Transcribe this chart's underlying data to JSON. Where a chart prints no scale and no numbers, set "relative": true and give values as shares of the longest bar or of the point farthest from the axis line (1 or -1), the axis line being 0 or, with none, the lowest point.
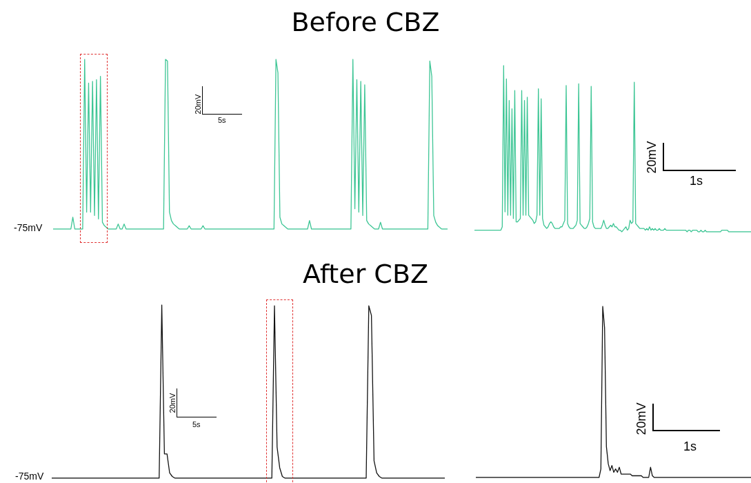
{
  "chart_data": [
    {
      "type": "line",
      "title": "Before CBZ",
      "relative": true,
      "tick_labels": false,
      "annotations": [
        "-75mV",
        "20mV",
        "5s"
      ],
      "categories": [
        null,
        null,
        null,
        null,
        null,
        null,
        null,
        null,
        null,
        null,
        null,
        null,
        null,
        null,
        null,
        null,
        null,
        null,
        null,
        null,
        null,
        null,
        null,
        null,
        null,
        null,
        null,
        null,
        null,
        null,
        null,
        null,
        null,
        null,
        null,
        null,
        null,
        null,
        null,
        null,
        null,
        null,
        null,
        null,
        null,
        null,
        null,
        null,
        null,
        null,
        null,
        null,
        null,
        null,
        null,
        null,
        null,
        null,
        null,
        null,
        null,
        null,
        null,
        null,
        null,
        null,
        null,
        null,
        null,
        null,
        null,
        null,
        null,
        null,
        null,
        null,
        null,
        null,
        null,
        null,
        null,
        null,
        null,
        null,
        null,
        null,
        null,
        null,
        null,
        null,
        null,
        null,
        null,
        null,
        null,
        null,
        null,
        null,
        null,
        null,
        null,
        null,
        null,
        null,
        null,
        null,
        null,
        null,
        null,
        null,
        null,
        null,
        null,
        null,
        null,
        null,
        null,
        null,
        null,
        null,
        null,
        null,
        null,
        null,
        null,
        null,
        null,
        null,
        null,
        null,
        null,
        null,
        null,
        null,
        null,
        null,
        null,
        null,
        null,
        null,
        null,
        null,
        null,
        null,
        null,
        null,
        null,
        null,
        null,
        null,
        null,
        null,
        null,
        null,
        null,
        null,
        null,
        null,
        null,
        null,
        null,
        null,
        null,
        null,
        null,
        null,
        null,
        null,
        null,
        null,
        null,
        null,
        null,
        null,
        null,
        null,
        null,
        null,
        null,
        null,
        null,
        null,
        null,
        null,
        null,
        null,
        null,
        null,
        null,
        null,
        null,
        null,
        null,
        null,
        null,
        null,
        null,
        null,
        null,
        null,
        null
      ],
      "series": [
        {
          "color": "#3cc594",
          "values": [
            0,
            0,
            0,
            0,
            0,
            0,
            0,
            0,
            0,
            0,
            0.07,
            0,
            0,
            0,
            0,
            0,
            1.0,
            0.1,
            0.86,
            0.1,
            0.87,
            0.08,
            0.88,
            0.06,
            0.9,
            0.04,
            0.02,
            0.01,
            0,
            0,
            0,
            0,
            0,
            0.03,
            0,
            0,
            0.03,
            0,
            0,
            0,
            0,
            0,
            0,
            0,
            0,
            0,
            0,
            0,
            0,
            0,
            0,
            0,
            0,
            0,
            0,
            0,
            0,
            1.0,
            0.99,
            0.1,
            0.05,
            0.03,
            0.02,
            0.01,
            0,
            0,
            0,
            0,
            0,
            0.02,
            0,
            0,
            0,
            0,
            0,
            0,
            0.02,
            0,
            0,
            0,
            0,
            0,
            0,
            0,
            0,
            0,
            0,
            0,
            0,
            0,
            0,
            0,
            0,
            0,
            0,
            0,
            0,
            0,
            0,
            0,
            0,
            0,
            0,
            0,
            0,
            0,
            0,
            0,
            0,
            0,
            0,
            0,
            0,
            1.0,
            0.92,
            0.07,
            0.03,
            0.02,
            0.01,
            0,
            0,
            0,
            0,
            0,
            0,
            0,
            0,
            0,
            0,
            0,
            0.05,
            0,
            0,
            0,
            0,
            0,
            0,
            0,
            0,
            0,
            0,
            0,
            0,
            0,
            0,
            0,
            0,
            0,
            0,
            0,
            0,
            0,
            1.0,
            0.12,
            0.88,
            0.1,
            0.87,
            0.08,
            0.85,
            0.05,
            0.03,
            0.02,
            0.01,
            0,
            0,
            0,
            0.04,
            0,
            0,
            0,
            0,
            0,
            0,
            0,
            0,
            0,
            0,
            0,
            0,
            0,
            0,
            0,
            0,
            0,
            0,
            0,
            0,
            0,
            0,
            0,
            0,
            0.99,
            0.9,
            0.08,
            0.04,
            0.02,
            0.01,
            0,
            0,
            0,
            0
          ]
        }
      ]
    },
    {
      "type": "line",
      "relative": true,
      "tick_labels": false,
      "annotations": [
        "20mV",
        "1s"
      ],
      "categories": [
        null,
        null,
        null,
        null,
        null,
        null,
        null,
        null,
        null,
        null,
        null,
        null,
        null,
        null,
        null,
        null,
        null,
        null,
        null,
        null,
        null,
        null,
        null,
        null,
        null,
        null,
        null,
        null,
        null,
        null,
        null,
        null,
        null,
        null,
        null,
        null,
        null,
        null,
        null,
        null,
        null,
        null,
        null,
        null,
        null,
        null,
        null,
        null,
        null,
        null,
        null,
        null,
        null,
        null,
        null,
        null,
        null,
        null,
        null,
        null,
        null,
        null,
        null,
        null,
        null,
        null,
        null,
        null,
        null,
        null,
        null,
        null,
        null,
        null,
        null,
        null,
        null,
        null,
        null,
        null,
        null,
        null,
        null,
        null,
        null,
        null,
        null,
        null,
        null,
        null,
        null,
        null,
        null,
        null,
        null,
        null,
        null,
        null,
        null,
        null,
        null,
        null,
        null,
        null,
        null,
        null,
        null,
        null,
        null,
        null,
        null,
        null,
        null,
        null,
        null,
        null,
        null,
        null,
        null,
        null,
        null,
        null,
        null,
        null,
        null,
        null,
        null,
        null,
        null,
        null,
        null,
        null,
        null,
        null,
        null,
        null,
        null,
        null,
        null,
        null,
        null,
        null,
        null,
        null,
        null,
        null,
        null,
        null,
        null,
        null,
        null,
        null,
        null,
        null,
        null,
        null,
        null,
        null,
        null,
        null,
        null,
        null,
        null,
        null,
        null,
        null,
        null,
        null,
        null,
        null,
        null,
        null,
        null,
        null,
        null,
        null,
        null,
        null,
        null,
        null,
        null,
        null,
        null,
        null,
        null,
        null,
        null,
        null,
        null,
        null,
        null,
        null,
        null,
        null,
        null,
        null,
        null,
        null,
        null,
        null
      ],
      "series": [
        {
          "color": "#3cc594",
          "values": [
            0.01,
            0.01,
            0.01,
            0.01,
            0.01,
            0.01,
            0.01,
            0.01,
            0.01,
            0.01,
            0.01,
            0.01,
            0.01,
            0.01,
            0.01,
            0.01,
            0.01,
            0.01,
            0.01,
            0.01,
            0.03,
            1.0,
            0.12,
            0.92,
            0.1,
            0.79,
            0.1,
            0.74,
            0.08,
            0.85,
            0.06,
            0.06,
            0.07,
            0.08,
            0.85,
            0.1,
            0.79,
            0.1,
            0.81,
            0.1,
            0.09,
            0.08,
            0.07,
            0.05,
            0.06,
            0.1,
            0.86,
            0.1,
            0.8,
            0.08,
            0.04,
            0.03,
            0.02,
            0.03,
            0.05,
            0.06,
            0.05,
            0.03,
            0.02,
            0.02,
            0.02,
            0.02,
            0.03,
            0.03,
            0.05,
            0.07,
            0.88,
            0.05,
            0.03,
            0.02,
            0.02,
            0.02,
            0.03,
            0.04,
            0.07,
            0.89,
            0.05,
            0.04,
            0.03,
            0.02,
            0.02,
            0.03,
            0.05,
            0.08,
            0.875,
            0.06,
            0.03,
            0.02,
            0.02,
            0.02,
            0.02,
            0.02,
            0.04,
            0.07,
            0.04,
            0.02,
            0.02,
            0.03,
            0.04,
            0.03,
            0.05,
            0.03,
            0.03,
            0.02,
            0.01,
            0.01,
            0,
            0.01,
            0.02,
            0.03,
            0.01,
            0.02,
            0.07,
            0.05,
            0.06,
            0.9,
            0.05,
            0.04,
            0.03,
            0.02,
            0.02,
            0.02,
            0.02,
            0.01,
            0.02,
            0.01,
            0.03,
            0.01,
            0.02,
            0.01,
            0.02,
            0.01,
            0.01,
            0.02,
            0.01,
            0.01,
            0.01,
            0.02,
            0.01,
            0.01,
            0.01,
            0.01,
            0.01,
            0.01,
            0.01,
            0.01,
            0.01,
            0.01,
            0.01,
            0.01,
            0.01,
            0.01,
            0.01,
            0,
            0.01,
            0.01,
            0,
            0.01,
            0.01,
            0.01,
            0.01,
            0,
            0,
            0.01,
            0,
            0,
            0.01,
            0,
            0,
            0,
            0,
            0,
            0,
            0,
            0,
            0,
            0,
            0,
            0.01,
            0.01,
            0.01,
            0.01,
            0.01,
            0,
            0,
            0,
            0,
            0,
            0,
            0,
            0,
            0,
            0,
            0,
            0,
            0,
            0,
            0,
            0,
            0
          ]
        }
      ]
    },
    {
      "type": "line",
      "title": "After CBZ",
      "relative": true,
      "tick_labels": false,
      "annotations": [
        "-75mV",
        "20mV",
        "5s"
      ],
      "categories": [
        null,
        null,
        null,
        null,
        null,
        null,
        null,
        null,
        null,
        null,
        null,
        null,
        null,
        null,
        null,
        null,
        null,
        null,
        null,
        null,
        null,
        null,
        null,
        null,
        null,
        null,
        null,
        null,
        null,
        null,
        null,
        null,
        null,
        null,
        null,
        null,
        null,
        null,
        null,
        null,
        null,
        null,
        null,
        null,
        null,
        null,
        null,
        null,
        null,
        null,
        null,
        null,
        null,
        null,
        null,
        null,
        null,
        null,
        null,
        null,
        null,
        null,
        null,
        null,
        null,
        null,
        null,
        null,
        null,
        null,
        null,
        null,
        null,
        null,
        null,
        null,
        null,
        null,
        null,
        null,
        null,
        null,
        null,
        null,
        null,
        null,
        null,
        null,
        null,
        null,
        null,
        null,
        null,
        null,
        null,
        null,
        null,
        null,
        null,
        null,
        null,
        null,
        null,
        null,
        null,
        null,
        null,
        null,
        null,
        null,
        null,
        null,
        null,
        null,
        null,
        null,
        null,
        null,
        null,
        null,
        null,
        null,
        null,
        null,
        null,
        null,
        null,
        null,
        null,
        null,
        null,
        null,
        null,
        null,
        null,
        null,
        null,
        null,
        null,
        null,
        null,
        null,
        null,
        null,
        null,
        null,
        null,
        null,
        null,
        null,
        null
      ],
      "series": [
        {
          "color": "#111111",
          "values": [
            0,
            0,
            0,
            0,
            0,
            0,
            0,
            0,
            0,
            0,
            0,
            0,
            0,
            0,
            0,
            0,
            0,
            0,
            0,
            0,
            0,
            0,
            0,
            0,
            0,
            0,
            0,
            0,
            0,
            0,
            0,
            0,
            0,
            0,
            0,
            0,
            0,
            0,
            0,
            0,
            0,
            0,
            1.0,
            0.14,
            0.14,
            0.03,
            0.01,
            0,
            0,
            0,
            0,
            0,
            0,
            0,
            0,
            0,
            0,
            0,
            0,
            0,
            0,
            0,
            0,
            0,
            0,
            0,
            0,
            0,
            0,
            0,
            0,
            0,
            0,
            0,
            0,
            0,
            0,
            0,
            0,
            0,
            0,
            0,
            0,
            0,
            0,
            0.995,
            0.18,
            0.06,
            0.01,
            0,
            0,
            0,
            0,
            0,
            0,
            0,
            0,
            0,
            0,
            0,
            0,
            0,
            0,
            0,
            0,
            0,
            0,
            0,
            0,
            0,
            0,
            0,
            0,
            0,
            0,
            0,
            0,
            0,
            0,
            0,
            0,
            0.995,
            0.94,
            0.1,
            0.03,
            0.01,
            0,
            0,
            0,
            0,
            0,
            0,
            0,
            0,
            0,
            0,
            0,
            0,
            0,
            0,
            0,
            0,
            0,
            0,
            0,
            0,
            0,
            0,
            0,
            0,
            0
          ]
        }
      ]
    },
    {
      "type": "line",
      "relative": true,
      "tick_labels": false,
      "annotations": [
        "20mV",
        "1s"
      ],
      "categories": [
        null,
        null,
        null,
        null,
        null,
        null,
        null,
        null,
        null,
        null,
        null,
        null,
        null,
        null,
        null,
        null,
        null,
        null,
        null,
        null,
        null,
        null,
        null,
        null,
        null,
        null,
        null,
        null,
        null,
        null,
        null,
        null,
        null,
        null,
        null,
        null,
        null,
        null,
        null,
        null,
        null,
        null,
        null,
        null,
        null,
        null,
        null,
        null,
        null,
        null,
        null,
        null,
        null,
        null,
        null,
        null,
        null,
        null,
        null,
        null,
        null,
        null,
        null,
        null,
        null,
        null,
        null,
        null,
        null,
        null,
        null,
        null,
        null,
        null,
        null,
        null,
        null,
        null,
        null,
        null,
        null,
        null,
        null,
        null,
        null,
        null,
        null,
        null,
        null,
        null,
        null,
        null,
        null,
        null,
        null,
        null,
        null,
        null,
        null,
        null,
        null,
        null,
        null,
        null,
        null,
        null,
        null,
        null,
        null,
        null,
        null,
        null,
        null,
        null,
        null,
        null,
        null,
        null,
        null,
        null,
        null,
        null,
        null,
        null,
        null,
        null,
        null,
        null,
        null,
        null,
        null,
        null,
        null,
        null,
        null,
        null,
        null,
        null,
        null,
        null,
        null,
        null,
        null,
        null,
        null,
        null,
        null,
        null,
        null,
        null,
        null
      ],
      "series": [
        {
          "color": "#111111",
          "values": [
            0,
            0,
            0,
            0,
            0,
            0,
            0,
            0,
            0,
            0,
            0,
            0,
            0,
            0,
            0,
            0,
            0,
            0,
            0,
            0,
            0,
            0,
            0,
            0,
            0,
            0,
            0,
            0,
            0,
            0,
            0,
            0,
            0,
            0,
            0,
            0,
            0,
            0,
            0,
            0,
            0,
            0,
            0,
            0,
            0,
            0,
            0,
            0,
            0,
            0,
            0,
            0,
            0,
            0,
            0,
            0,
            0,
            0,
            0,
            0,
            0,
            0,
            0,
            0,
            0,
            0,
            0,
            0,
            0.05,
            1.0,
            0.876,
            0.18,
            0.08,
            0.04,
            0.07,
            0.03,
            0.05,
            0.03,
            0.06,
            0.02,
            0.02,
            0.02,
            0.02,
            0.02,
            0.02,
            0.01,
            0.01,
            0.01,
            0.01,
            0.01,
            0.01,
            0,
            0,
            0,
            0,
            0.06,
            0.01,
            0,
            0,
            0,
            0,
            0,
            0,
            0,
            0,
            0,
            0,
            0,
            0,
            0,
            0,
            0,
            0,
            0,
            0,
            0,
            0,
            0,
            0,
            0,
            0,
            0,
            0,
            0,
            0,
            0,
            0,
            0,
            0,
            0,
            0,
            0,
            0,
            0,
            0,
            0,
            0,
            0,
            0,
            0,
            0,
            0,
            0,
            0,
            0,
            0,
            0,
            0,
            0,
            0,
            0
          ]
        }
      ]
    }
  ]
}
